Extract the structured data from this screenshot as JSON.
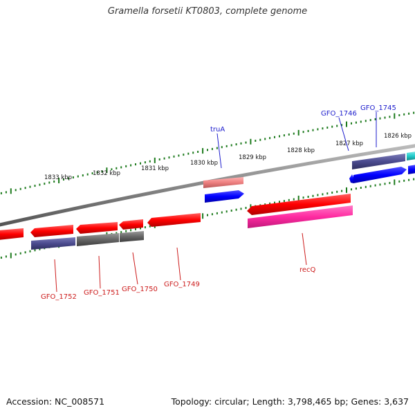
{
  "title": "Gramella forsetii KT0803, complete genome",
  "accession": "Accession: NC_008571",
  "summary": "Topology: circular; Length: 3,798,465 bp; Genes: 3,637",
  "scale_labels": [
    "1833 kbp",
    "1832 kbp",
    "1831 kbp",
    "1830 kbp",
    "1829 kbp",
    "1828 kbp",
    "1827 kbp",
    "1826 kbp"
  ],
  "gene_labels": {
    "truA": "truA",
    "GFO_1746": "GFO_1746",
    "GFO_1745": "GFO_1745",
    "GFO_1752": "GFO_1752",
    "GFO_1751": "GFO_1751",
    "GFO_1750": "GFO_1750",
    "GFO_1749": "GFO_1749",
    "recQ": "recQ"
  },
  "colors": {
    "forward_label": "#1a1acc",
    "reverse_label": "#cc1a1a",
    "cds_red": "#ff0000",
    "cds_blue": "#0000ff",
    "cog_purple": "#4b4b8f",
    "cog_grey": "#666666",
    "cog_pink": "#ff2aa0",
    "cog_salmon": "#ee8080",
    "cog_cyan": "#22cccc",
    "tick_green": "#1c7a1c",
    "backbone": "#888888"
  }
}
